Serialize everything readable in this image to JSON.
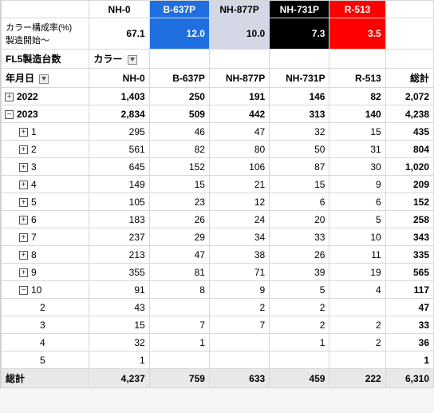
{
  "top": {
    "colors": [
      {
        "code": "NH-0",
        "bg": "#ffffff",
        "fg": "#000000"
      },
      {
        "code": "B-637P",
        "bg": "#1f6fe0",
        "fg": "#ffffff"
      },
      {
        "code": "NH-877P",
        "bg": "#d3d7e6",
        "fg": "#000000"
      },
      {
        "code": "NH-731P",
        "bg": "#000000",
        "fg": "#ffffff"
      },
      {
        "code": "R-513",
        "bg": "#ff0000",
        "fg": "#ffffff"
      }
    ],
    "ratio_label": "カラー構成率(%)\n製造開始～",
    "ratios": [
      "67.1",
      "12.0",
      "10.0",
      "7.3",
      "3.5"
    ]
  },
  "pivot": {
    "title": "FL5製造台数",
    "color_label": "カラー",
    "rowfield": "年月日",
    "cols": [
      "NH-0",
      "B-637P",
      "NH-877P",
      "NH-731P",
      "R-513",
      "総計"
    ],
    "rows": [
      {
        "t": "y",
        "btn": "+",
        "label": "2022",
        "v": [
          "1,403",
          "250",
          "191",
          "146",
          "82",
          "2,072"
        ]
      },
      {
        "t": "y",
        "btn": "−",
        "label": "2023",
        "v": [
          "2,834",
          "509",
          "442",
          "313",
          "140",
          "4,238"
        ]
      },
      {
        "t": "m",
        "btn": "+",
        "label": "1",
        "v": [
          "295",
          "46",
          "47",
          "32",
          "15",
          "435"
        ]
      },
      {
        "t": "m",
        "btn": "+",
        "label": "2",
        "v": [
          "561",
          "82",
          "80",
          "50",
          "31",
          "804"
        ]
      },
      {
        "t": "m",
        "btn": "+",
        "label": "3",
        "v": [
          "645",
          "152",
          "106",
          "87",
          "30",
          "1,020"
        ]
      },
      {
        "t": "m",
        "btn": "+",
        "label": "4",
        "v": [
          "149",
          "15",
          "21",
          "15",
          "9",
          "209"
        ]
      },
      {
        "t": "m",
        "btn": "+",
        "label": "5",
        "v": [
          "105",
          "23",
          "12",
          "6",
          "6",
          "152"
        ]
      },
      {
        "t": "m",
        "btn": "+",
        "label": "6",
        "v": [
          "183",
          "26",
          "24",
          "20",
          "5",
          "258"
        ]
      },
      {
        "t": "m",
        "btn": "+",
        "label": "7",
        "v": [
          "237",
          "29",
          "34",
          "33",
          "10",
          "343"
        ]
      },
      {
        "t": "m",
        "btn": "+",
        "label": "8",
        "v": [
          "213",
          "47",
          "38",
          "26",
          "11",
          "335"
        ]
      },
      {
        "t": "m",
        "btn": "+",
        "label": "9",
        "v": [
          "355",
          "81",
          "71",
          "39",
          "19",
          "565"
        ]
      },
      {
        "t": "m",
        "btn": "−",
        "label": "10",
        "v": [
          "91",
          "8",
          "9",
          "5",
          "4",
          "117"
        ]
      },
      {
        "t": "d",
        "label": "2",
        "v": [
          "43",
          "",
          "2",
          "2",
          "",
          "47"
        ]
      },
      {
        "t": "d",
        "label": "3",
        "v": [
          "15",
          "7",
          "7",
          "2",
          "2",
          "33"
        ]
      },
      {
        "t": "d",
        "label": "4",
        "v": [
          "32",
          "1",
          "",
          "1",
          "2",
          "36"
        ]
      },
      {
        "t": "d",
        "label": "5",
        "v": [
          "1",
          "",
          "",
          "",
          "",
          "1"
        ]
      }
    ],
    "grand_label": "総計",
    "grand": [
      "4,237",
      "759",
      "633",
      "459",
      "222",
      "6,310"
    ]
  },
  "col_widths": [
    "110",
    "75",
    "75",
    "75",
    "75",
    "70",
    "60"
  ]
}
